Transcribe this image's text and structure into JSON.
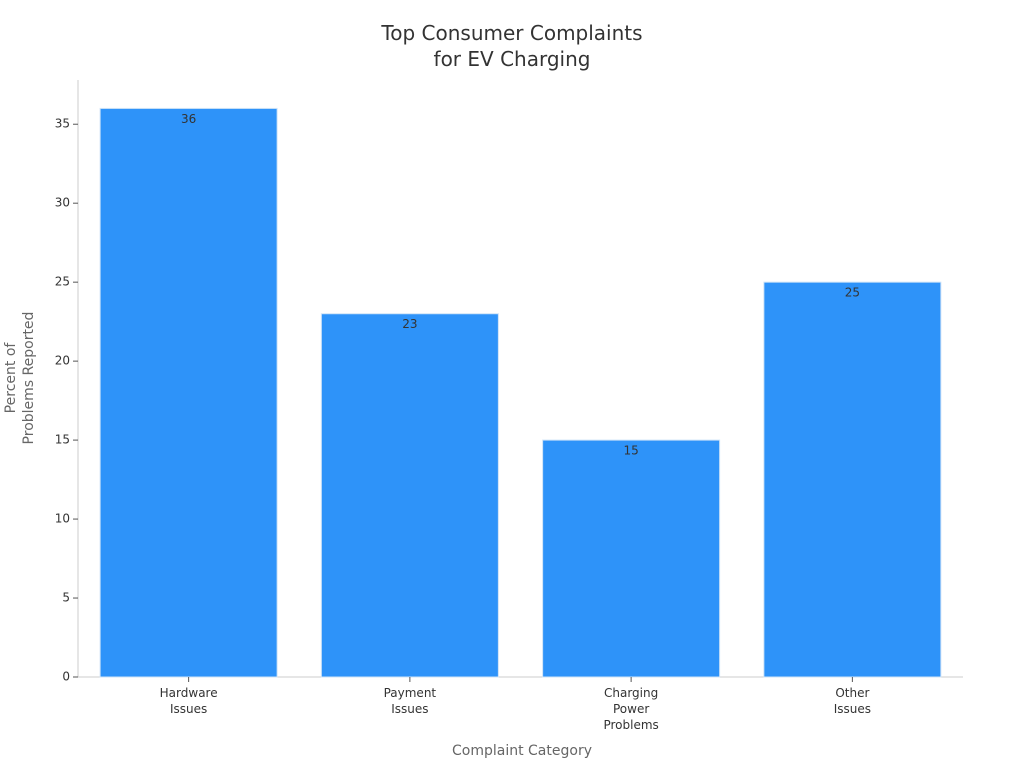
{
  "chart_data": {
    "type": "bar",
    "title": "Top Consumer Complaints\nfor EV Charging",
    "x_label": "Complaint Category",
    "y_label": "Percent of\nProblems Reported",
    "categories": [
      "Hardware\nIssues",
      "Payment\nIssues",
      "Charging\nPower\nProblems",
      "Other\nIssues"
    ],
    "values": [
      36,
      23,
      15,
      25
    ],
    "color": "#2e93f9",
    "ylim": [
      0,
      37.8
    ],
    "yticks": [
      0,
      5,
      10,
      15,
      20,
      25,
      30,
      35
    ],
    "grid": false
  }
}
